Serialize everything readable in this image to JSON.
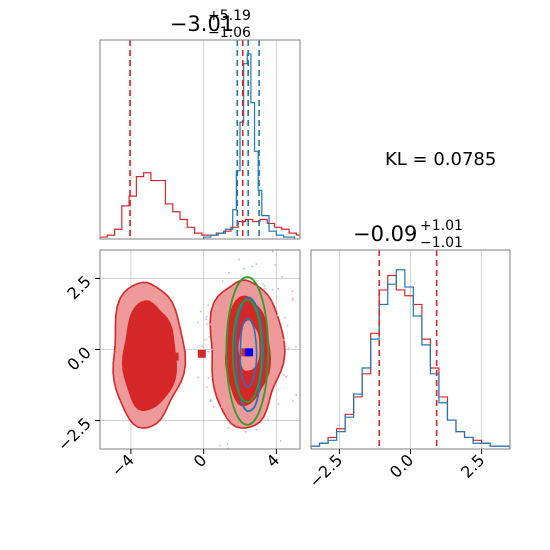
{
  "chart_data": [
    {
      "type": "histogram",
      "panel": "top-left",
      "title_main": "−3.01",
      "title_sup": "+5.19",
      "title_sub": "−1.06",
      "xlim": [
        -5.7,
        5.3
      ],
      "grid": true,
      "series": [
        {
          "color": "#d62728",
          "bin_edges": [
            -5.7,
            -5.3,
            -4.9,
            -4.5,
            -4.1,
            -3.7,
            -3.3,
            -2.9,
            -2.5,
            -2.1,
            -1.7,
            -1.3,
            -0.9,
            -0.5,
            -0.1,
            0.3,
            0.7,
            1.1,
            1.5,
            1.9,
            2.3,
            2.7,
            3.1,
            3.5,
            3.9,
            4.3,
            4.7,
            5.1,
            5.3
          ],
          "counts": [
            1,
            2,
            5,
            17,
            22,
            32,
            34,
            30,
            30,
            18,
            14,
            10,
            6,
            3,
            2,
            2,
            3,
            4,
            6,
            9,
            10,
            9,
            10,
            8,
            6,
            5,
            3,
            2
          ]
        },
        {
          "color": "#1f77b4",
          "bin_edges": [
            0.0,
            0.4,
            0.8,
            1.2,
            1.6,
            1.8,
            2.0,
            2.2,
            2.4,
            2.6,
            2.8,
            3.0,
            3.2,
            3.6,
            4.0,
            4.4,
            5.0
          ],
          "counts": [
            1,
            2,
            3,
            5,
            15,
            35,
            60,
            90,
            95,
            70,
            45,
            25,
            12,
            4,
            2,
            1
          ]
        }
      ],
      "quantile_lines": {
        "red": [
          -4.05,
          2.15
        ],
        "blue": [
          1.85,
          2.45,
          3.05
        ]
      }
    },
    {
      "type": "contour",
      "panel": "bottom-left",
      "xlim": [
        -5.7,
        5.3
      ],
      "ylim": [
        -3.5,
        3.5
      ],
      "x_ticks": [
        -4,
        0,
        4
      ],
      "x_tick_labels": [
        "−4",
        "0",
        "4"
      ],
      "y_ticks": [
        -2.5,
        0.0,
        2.5
      ],
      "y_tick_labels": [
        "−2.5",
        "0.0",
        "2.5"
      ],
      "grid": true,
      "red_markers": [
        [
          -3.3,
          -0.2
        ],
        [
          -1.6,
          -0.25
        ],
        [
          -0.1,
          -0.15
        ],
        [
          2.3,
          -0.1
        ]
      ],
      "blue_marker": [
        2.5,
        -0.1
      ]
    },
    {
      "type": "histogram",
      "panel": "bottom-right",
      "title_main": "−0.09",
      "title_sup": "+1.01",
      "title_sub": "−1.01",
      "xlim": [
        -3.5,
        3.5
      ],
      "x_ticks": [
        -2.5,
        0.0,
        2.5
      ],
      "x_tick_labels": [
        "−2.5",
        "0.0",
        "2.5"
      ],
      "grid": true,
      "series": [
        {
          "color": "#d62728",
          "bin_edges": [
            -3.5,
            -3.2,
            -2.9,
            -2.6,
            -2.3,
            -2.0,
            -1.7,
            -1.4,
            -1.1,
            -0.8,
            -0.5,
            -0.2,
            0.1,
            0.4,
            0.7,
            1.0,
            1.3,
            1.6,
            1.9,
            2.2,
            2.5,
            2.8,
            3.1,
            3.5
          ],
          "counts": [
            1,
            2,
            4,
            7,
            12,
            18,
            26,
            40,
            55,
            60,
            55,
            53,
            50,
            38,
            28,
            18,
            10,
            6,
            4,
            3,
            2,
            1,
            1
          ]
        },
        {
          "color": "#1f77b4",
          "bin_edges": [
            -3.5,
            -3.2,
            -2.9,
            -2.6,
            -2.3,
            -2.0,
            -1.7,
            -1.4,
            -1.1,
            -0.8,
            -0.5,
            -0.2,
            0.1,
            0.4,
            0.7,
            1.0,
            1.3,
            1.6,
            1.9,
            2.2,
            2.5,
            2.8,
            3.1,
            3.5
          ],
          "counts": [
            1,
            2,
            3,
            6,
            11,
            19,
            28,
            38,
            50,
            57,
            62,
            56,
            46,
            36,
            26,
            16,
            10,
            6,
            4,
            2,
            2,
            1,
            1
          ]
        }
      ],
      "quantile_lines": {
        "red": [
          -1.1,
          0.92
        ]
      }
    }
  ],
  "annotation": {
    "text": "KL = 0.0785"
  },
  "colors": {
    "red": "#d62728",
    "blue": "#1f77b4",
    "green": "#2ca02c",
    "red_fill_dark": "#d62728",
    "red_fill_light": "#ee9a9b",
    "grid": "#c8c8c8",
    "axis": "#808080"
  }
}
